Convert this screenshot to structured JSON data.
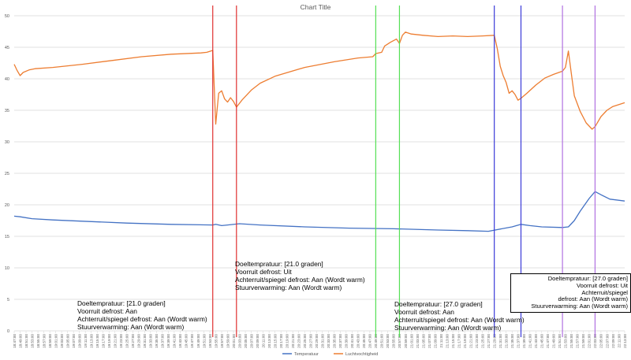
{
  "chart_data": {
    "type": "line",
    "title": "Chart Title",
    "xlabel": "",
    "ylabel": "",
    "ylim": [
      0,
      50
    ],
    "yticks": [
      0,
      5,
      10,
      15,
      20,
      25,
      30,
      35,
      40,
      45,
      50
    ],
    "grid": true,
    "legend_position": "bottom",
    "x_start": "18:47:00",
    "x_end": "22:13:00",
    "x_tick_step_minutes": 2,
    "series": [
      {
        "name": "Temperatuur",
        "color": "#4472C4",
        "points": [
          [
            "18:47:00",
            18.2
          ],
          [
            "18:49:00",
            18.1
          ],
          [
            "18:53:00",
            17.8
          ],
          [
            "19:00:00",
            17.6
          ],
          [
            "19:10:00",
            17.4
          ],
          [
            "19:25:00",
            17.1
          ],
          [
            "19:40:00",
            16.9
          ],
          [
            "19:54:00",
            16.8
          ],
          [
            "19:55:00",
            16.9
          ],
          [
            "19:57:00",
            16.7
          ],
          [
            "19:59:00",
            16.8
          ],
          [
            "20:03:00",
            17.0
          ],
          [
            "20:10:00",
            16.8
          ],
          [
            "20:25:00",
            16.5
          ],
          [
            "20:40:00",
            16.3
          ],
          [
            "20:55:00",
            16.2
          ],
          [
            "21:10:00",
            16.0
          ],
          [
            "21:20:00",
            15.9
          ],
          [
            "21:27:00",
            15.8
          ],
          [
            "21:35:00",
            16.5
          ],
          [
            "21:38:00",
            16.9
          ],
          [
            "21:41:00",
            16.7
          ],
          [
            "21:45:00",
            16.5
          ],
          [
            "21:52:00",
            16.4
          ],
          [
            "21:54:00",
            16.5
          ],
          [
            "21:56:00",
            17.5
          ],
          [
            "21:58:00",
            19.0
          ],
          [
            "22:01:00",
            21.0
          ],
          [
            "22:03:00",
            22.1
          ],
          [
            "22:05:00",
            21.6
          ],
          [
            "22:08:00",
            20.9
          ],
          [
            "22:13:00",
            20.6
          ]
        ]
      },
      {
        "name": "Luchtvochtigheid",
        "color": "#ED7D31",
        "points": [
          [
            "18:47:00",
            42.3
          ],
          [
            "18:48:00",
            41.3
          ],
          [
            "18:49:00",
            40.5
          ],
          [
            "18:50:00",
            41.0
          ],
          [
            "18:52:00",
            41.4
          ],
          [
            "18:54:00",
            41.6
          ],
          [
            "19:00:00",
            41.8
          ],
          [
            "19:10:00",
            42.3
          ],
          [
            "19:20:00",
            42.9
          ],
          [
            "19:30:00",
            43.5
          ],
          [
            "19:40:00",
            43.9
          ],
          [
            "19:50:00",
            44.1
          ],
          [
            "19:52:00",
            44.2
          ],
          [
            "19:54:00",
            44.5
          ],
          [
            "19:55:00",
            32.8
          ],
          [
            "19:56:00",
            37.7
          ],
          [
            "19:57:00",
            38.1
          ],
          [
            "19:58:00",
            36.8
          ],
          [
            "19:59:00",
            36.3
          ],
          [
            "20:00:00",
            37.0
          ],
          [
            "20:01:00",
            36.4
          ],
          [
            "20:02:00",
            35.5
          ],
          [
            "20:04:00",
            36.7
          ],
          [
            "20:07:00",
            38.2
          ],
          [
            "20:10:00",
            39.3
          ],
          [
            "20:15:00",
            40.4
          ],
          [
            "20:25:00",
            41.8
          ],
          [
            "20:35:00",
            42.7
          ],
          [
            "20:43:00",
            43.3
          ],
          [
            "20:48:00",
            43.5
          ],
          [
            "20:49:00",
            44.0
          ],
          [
            "20:51:00",
            44.2
          ],
          [
            "20:52:00",
            45.2
          ],
          [
            "20:54:00",
            45.8
          ],
          [
            "20:56:00",
            46.3
          ],
          [
            "20:57:00",
            45.6
          ],
          [
            "20:58:00",
            46.9
          ],
          [
            "20:59:00",
            47.4
          ],
          [
            "21:01:00",
            47.1
          ],
          [
            "21:05:00",
            46.9
          ],
          [
            "21:10:00",
            46.7
          ],
          [
            "21:15:00",
            46.8
          ],
          [
            "21:20:00",
            46.7
          ],
          [
            "21:25:00",
            46.8
          ],
          [
            "21:29:00",
            46.9
          ],
          [
            "21:30:00",
            44.8
          ],
          [
            "21:31:00",
            42.0
          ],
          [
            "21:32:00",
            40.5
          ],
          [
            "21:33:00",
            39.4
          ],
          [
            "21:34:00",
            37.7
          ],
          [
            "21:35:00",
            38.1
          ],
          [
            "21:36:00",
            37.5
          ],
          [
            "21:37:00",
            36.6
          ],
          [
            "21:38:00",
            36.9
          ],
          [
            "21:40:00",
            37.7
          ],
          [
            "21:43:00",
            39.0
          ],
          [
            "21:46:00",
            40.1
          ],
          [
            "21:49:00",
            40.7
          ],
          [
            "21:52:00",
            41.2
          ],
          [
            "21:53:00",
            41.8
          ],
          [
            "21:54:00",
            44.4
          ],
          [
            "21:55:00",
            40.8
          ],
          [
            "21:56:00",
            37.3
          ],
          [
            "21:58:00",
            34.8
          ],
          [
            "22:00:00",
            33.0
          ],
          [
            "22:02:00",
            32.0
          ],
          [
            "22:03:00",
            32.4
          ],
          [
            "22:05:00",
            34.0
          ],
          [
            "22:07:00",
            35.0
          ],
          [
            "22:09:00",
            35.6
          ],
          [
            "22:13:00",
            36.2
          ]
        ]
      }
    ],
    "markers": [
      {
        "x": "19:54:00",
        "color": "#E03030"
      },
      {
        "x": "20:02:00",
        "color": "#E03030"
      },
      {
        "x": "20:49:00",
        "color": "#55E055"
      },
      {
        "x": "20:57:00",
        "color": "#55E055"
      },
      {
        "x": "21:29:00",
        "color": "#3A3AD8"
      },
      {
        "x": "21:38:00",
        "color": "#3A3AD8"
      },
      {
        "x": "21:52:00",
        "color": "#B070E0"
      },
      {
        "x": "22:03:00",
        "color": "#B070E0"
      }
    ],
    "annotations": [
      {
        "id": "ann1",
        "lines": [
          "Doeltempratuur: [21.0 graden]",
          "Voorruit defrost: Aan",
          "Achterruit/spiegel defrost: Aan (Wordt warm)",
          "Stuurverwarming: Aan (Wordt warm)"
        ]
      },
      {
        "id": "ann2",
        "lines": [
          "Doeltempratuur: [21.0 graden]",
          "Voorruit defrost: Uit",
          "Achterruit/spiegel defrost: Aan (Wordt warm)",
          "Stuurverwarming: Aan (Wordt warm)"
        ]
      },
      {
        "id": "ann3",
        "lines": [
          "Doeltempratuur: [27.0 graden]",
          "Voorruit defrost: Aan",
          "Achterruit/spiegel defrost: Aan (Wordt warm)",
          "Stuurverwarming: Aan (Wordt warm)"
        ]
      },
      {
        "id": "ann4",
        "lines": [
          "Doeltempratuur: [27.0 graden]",
          "Voorruit defrost: Uit",
          "Achterruit/spiegel",
          "defrost: Aan (Wordt warm)",
          "Stuurverwarming: Aan (Wordt warm)"
        ]
      }
    ]
  }
}
